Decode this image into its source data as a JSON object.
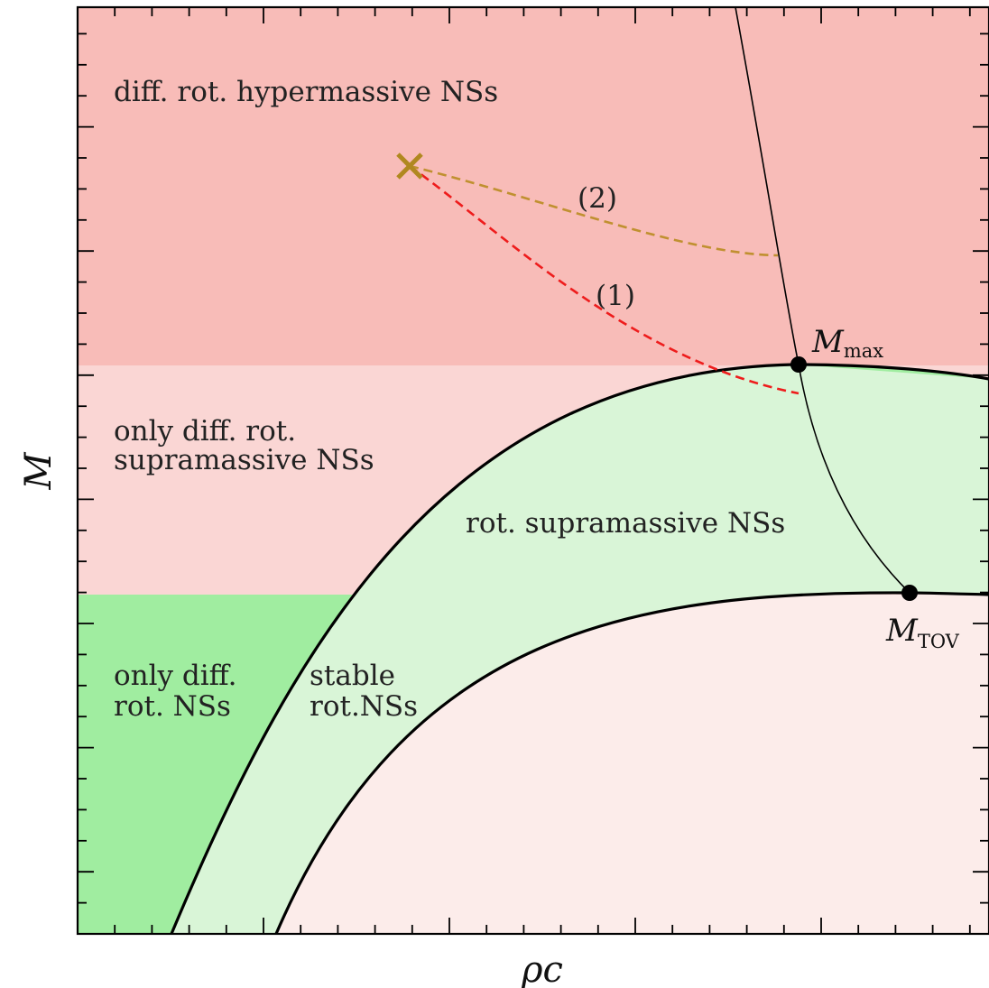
{
  "colors": {
    "hypermassive_region": "#f8bcb8",
    "diff_supramassive_region": "#fad6d4",
    "diff_rot_region": "#fcecea",
    "rot_supramassive_region": "#a0eda0",
    "stable_rot_region": "#d9f5d7",
    "path1": "#ee1c1c",
    "path2": "#c09030",
    "cross": "#b08820",
    "curves": "#000000"
  },
  "axes": {
    "xlabel": "ρc",
    "ylabel": "M"
  },
  "regions": {
    "hypermassive": "diff. rot. hypermassive NSs",
    "diff_supramassive_line1": "only diff. rot.",
    "diff_supramassive_line2": "supramassive NSs",
    "rot_supramassive": "rot. supramassive NSs",
    "diff_rot_line1": "only diff.",
    "diff_rot_line2": "rot. NSs",
    "stable_line1": "stable",
    "stable_line2": "rot.NSs"
  },
  "points": {
    "mmax": {
      "symbol": "M",
      "subscript": "max"
    },
    "mtov": {
      "symbol": "M",
      "subscript": "TOV"
    }
  },
  "paths": {
    "path1_label": "(1)",
    "path2_label": "(2)"
  }
}
